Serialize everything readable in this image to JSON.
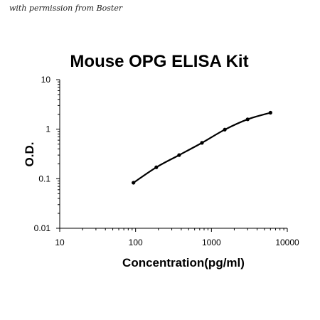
{
  "watermark": "with permission from Boster",
  "chart_data": {
    "type": "scatter",
    "title": "Mouse OPG ELISA Kit",
    "xlabel": "Concentration(pg/ml)",
    "ylabel": "O.D.",
    "xscale": "log",
    "yscale": "log",
    "xlim": [
      10,
      10000
    ],
    "ylim": [
      0.01,
      10
    ],
    "x_tick_labels": [
      "10",
      "100",
      "1000",
      "10000"
    ],
    "y_tick_labels": [
      "0.01",
      "0.1",
      "1",
      "10"
    ],
    "grid": false,
    "legend": "none",
    "series": [
      {
        "mode": "markers+smooth-line",
        "x": [
          93.75,
          187.5,
          375,
          750,
          1500,
          3000,
          6000
        ],
        "y": [
          0.083,
          0.17,
          0.3,
          0.53,
          0.98,
          1.58,
          2.15
        ]
      }
    ],
    "colors": {
      "line": "#000000",
      "marker": "#000000",
      "axis": "#000000"
    }
  }
}
